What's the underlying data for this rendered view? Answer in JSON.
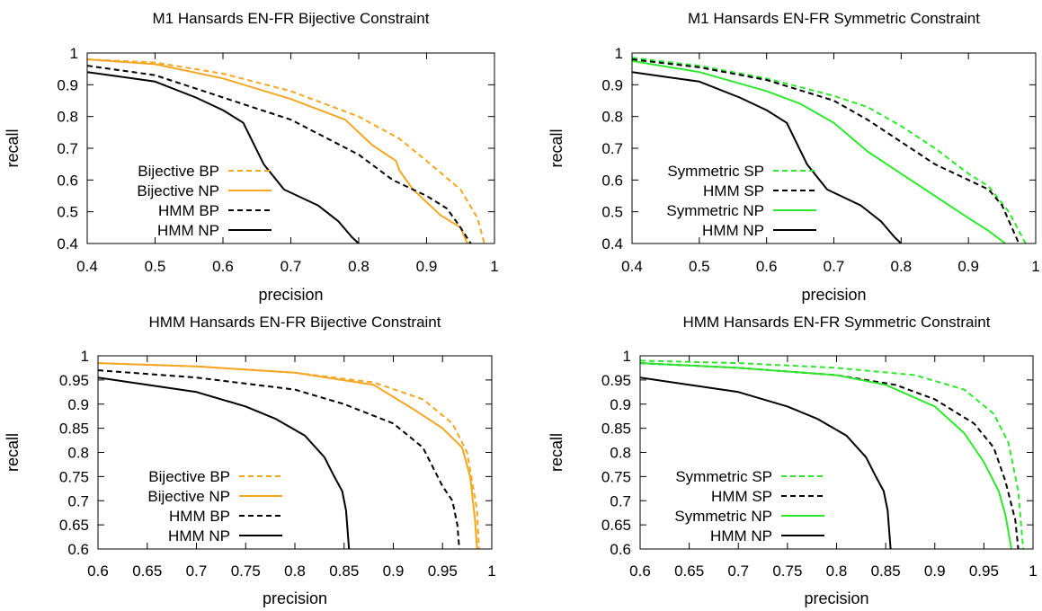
{
  "chart_data": [
    {
      "type": "line",
      "title": "M1 Hansards EN-FR Bijective Constraint",
      "xlabel": "precision",
      "ylabel": "recall",
      "xlim": [
        0.4,
        1
      ],
      "ylim": [
        0.4,
        1
      ],
      "xticks": [
        "0.4",
        "0.5",
        "0.6",
        "0.7",
        "0.8",
        "0.9",
        "1"
      ],
      "yticks": [
        "0.4",
        "0.5",
        "0.6",
        "0.7",
        "0.8",
        "0.9",
        "1"
      ],
      "legend_position": "lower-left",
      "series": [
        {
          "name": "Bijective BP",
          "color": "#f5a623",
          "dash": "dashed",
          "x": [
            0.4,
            0.5,
            0.6,
            0.7,
            0.8,
            0.86,
            0.9,
            0.95,
            0.975,
            0.985
          ],
          "y": [
            0.98,
            0.97,
            0.935,
            0.88,
            0.8,
            0.73,
            0.66,
            0.57,
            0.48,
            0.4
          ]
        },
        {
          "name": "Bijective NP",
          "color": "#f5a623",
          "dash": "solid",
          "x": [
            0.4,
            0.5,
            0.6,
            0.7,
            0.78,
            0.82,
            0.855,
            0.86,
            0.88,
            0.92,
            0.95,
            0.96
          ],
          "y": [
            0.98,
            0.965,
            0.92,
            0.855,
            0.79,
            0.71,
            0.66,
            0.63,
            0.57,
            0.49,
            0.45,
            0.4
          ]
        },
        {
          "name": "HMM BP",
          "color": "#000000",
          "dash": "dashed",
          "x": [
            0.4,
            0.5,
            0.6,
            0.7,
            0.8,
            0.85,
            0.9,
            0.93,
            0.95,
            0.965
          ],
          "y": [
            0.96,
            0.93,
            0.86,
            0.79,
            0.68,
            0.6,
            0.55,
            0.51,
            0.45,
            0.4
          ]
        },
        {
          "name": "HMM NP",
          "color": "#000000",
          "dash": "solid",
          "x": [
            0.4,
            0.5,
            0.56,
            0.6,
            0.63,
            0.66,
            0.69,
            0.74,
            0.77,
            0.79,
            0.8
          ],
          "y": [
            0.94,
            0.91,
            0.86,
            0.82,
            0.78,
            0.65,
            0.57,
            0.52,
            0.47,
            0.42,
            0.4
          ]
        }
      ]
    },
    {
      "type": "line",
      "title": "M1 Hansards EN-FR Symmetric Constraint",
      "xlabel": "precision",
      "ylabel": "recall",
      "xlim": [
        0.4,
        1
      ],
      "ylim": [
        0.4,
        1
      ],
      "xticks": [
        "0.4",
        "0.5",
        "0.6",
        "0.7",
        "0.8",
        "0.9",
        "1"
      ],
      "yticks": [
        "0.4",
        "0.5",
        "0.6",
        "0.7",
        "0.8",
        "0.9",
        "1"
      ],
      "legend_position": "lower-left",
      "series": [
        {
          "name": "Symmetric SP",
          "color": "#2ee82e",
          "dash": "dashed",
          "x": [
            0.4,
            0.5,
            0.6,
            0.7,
            0.75,
            0.8,
            0.85,
            0.9,
            0.93,
            0.96,
            0.985
          ],
          "y": [
            0.985,
            0.96,
            0.92,
            0.865,
            0.83,
            0.77,
            0.7,
            0.62,
            0.58,
            0.5,
            0.4
          ]
        },
        {
          "name": "HMM SP",
          "color": "#000000",
          "dash": "dashed",
          "x": [
            0.4,
            0.5,
            0.6,
            0.7,
            0.75,
            0.8,
            0.85,
            0.9,
            0.93,
            0.95,
            0.975
          ],
          "y": [
            0.98,
            0.955,
            0.915,
            0.85,
            0.79,
            0.72,
            0.65,
            0.6,
            0.57,
            0.52,
            0.4
          ]
        },
        {
          "name": "Symmetric NP",
          "color": "#2ee82e",
          "dash": "solid",
          "x": [
            0.4,
            0.5,
            0.6,
            0.65,
            0.7,
            0.75,
            0.8,
            0.85,
            0.9,
            0.93,
            0.955
          ],
          "y": [
            0.975,
            0.94,
            0.88,
            0.84,
            0.78,
            0.69,
            0.62,
            0.55,
            0.48,
            0.44,
            0.4
          ]
        },
        {
          "name": "HMM NP",
          "color": "#000000",
          "dash": "solid",
          "x": [
            0.4,
            0.5,
            0.56,
            0.6,
            0.63,
            0.66,
            0.69,
            0.74,
            0.77,
            0.79,
            0.8
          ],
          "y": [
            0.94,
            0.91,
            0.86,
            0.82,
            0.78,
            0.65,
            0.57,
            0.52,
            0.47,
            0.42,
            0.4
          ]
        }
      ]
    },
    {
      "type": "line",
      "title": "HMM Hansards EN-FR Bijective Constraint",
      "xlabel": "precision",
      "ylabel": "recall",
      "xlim": [
        0.6,
        1
      ],
      "ylim": [
        0.6,
        1
      ],
      "xticks": [
        "0.6",
        "0.65",
        "0.7",
        "0.75",
        "0.8",
        "0.85",
        "0.9",
        "0.95",
        "1"
      ],
      "yticks": [
        "0.6",
        "0.65",
        "0.7",
        "0.75",
        "0.8",
        "0.85",
        "0.9",
        "0.95",
        "1"
      ],
      "legend_position": "lower-left",
      "series": [
        {
          "name": "Bijective BP",
          "color": "#f5a623",
          "dash": "dashed",
          "x": [
            0.6,
            0.7,
            0.8,
            0.88,
            0.93,
            0.96,
            0.975,
            0.985,
            0.987
          ],
          "y": [
            0.985,
            0.978,
            0.965,
            0.945,
            0.91,
            0.86,
            0.8,
            0.68,
            0.6
          ]
        },
        {
          "name": "Bijective NP",
          "color": "#f5a623",
          "dash": "solid",
          "x": [
            0.6,
            0.7,
            0.8,
            0.88,
            0.92,
            0.95,
            0.97,
            0.978,
            0.983,
            0.985
          ],
          "y": [
            0.985,
            0.978,
            0.965,
            0.94,
            0.89,
            0.85,
            0.81,
            0.75,
            0.66,
            0.6
          ]
        },
        {
          "name": "HMM BP",
          "color": "#000000",
          "dash": "dashed",
          "x": [
            0.6,
            0.7,
            0.8,
            0.85,
            0.9,
            0.93,
            0.95,
            0.96,
            0.965,
            0.967
          ],
          "y": [
            0.97,
            0.955,
            0.93,
            0.9,
            0.86,
            0.81,
            0.73,
            0.7,
            0.65,
            0.6
          ]
        },
        {
          "name": "HMM NP",
          "color": "#000000",
          "dash": "solid",
          "x": [
            0.6,
            0.65,
            0.7,
            0.75,
            0.78,
            0.81,
            0.83,
            0.84,
            0.848,
            0.852,
            0.855
          ],
          "y": [
            0.955,
            0.94,
            0.925,
            0.895,
            0.87,
            0.835,
            0.79,
            0.75,
            0.72,
            0.68,
            0.6
          ]
        }
      ]
    },
    {
      "type": "line",
      "title": "HMM Hansards EN-FR Symmetric Constraint",
      "xlabel": "precision",
      "ylabel": "recall",
      "xlim": [
        0.6,
        1
      ],
      "ylim": [
        0.6,
        1
      ],
      "xticks": [
        "0.6",
        "0.65",
        "0.7",
        "0.75",
        "0.8",
        "0.85",
        "0.9",
        "0.95",
        "1"
      ],
      "yticks": [
        "0.6",
        "0.65",
        "0.7",
        "0.75",
        "0.8",
        "0.85",
        "0.9",
        "0.95",
        "1"
      ],
      "legend_position": "lower-left",
      "series": [
        {
          "name": "Symmetric SP",
          "color": "#2ee82e",
          "dash": "dashed",
          "x": [
            0.6,
            0.7,
            0.8,
            0.88,
            0.93,
            0.96,
            0.975,
            0.985,
            0.99
          ],
          "y": [
            0.99,
            0.985,
            0.975,
            0.96,
            0.93,
            0.88,
            0.82,
            0.72,
            0.6
          ]
        },
        {
          "name": "HMM SP",
          "color": "#000000",
          "dash": "dashed",
          "x": [
            0.6,
            0.7,
            0.8,
            0.86,
            0.9,
            0.94,
            0.96,
            0.972,
            0.982,
            0.985
          ],
          "y": [
            0.985,
            0.975,
            0.96,
            0.94,
            0.91,
            0.86,
            0.81,
            0.74,
            0.66,
            0.6
          ]
        },
        {
          "name": "Symmetric NP",
          "color": "#2ee82e",
          "dash": "solid",
          "x": [
            0.6,
            0.7,
            0.8,
            0.85,
            0.9,
            0.93,
            0.95,
            0.965,
            0.972,
            0.978
          ],
          "y": [
            0.985,
            0.975,
            0.96,
            0.94,
            0.895,
            0.84,
            0.78,
            0.72,
            0.67,
            0.6
          ]
        },
        {
          "name": "HMM NP",
          "color": "#000000",
          "dash": "solid",
          "x": [
            0.6,
            0.65,
            0.7,
            0.75,
            0.78,
            0.81,
            0.83,
            0.84,
            0.848,
            0.852,
            0.855
          ],
          "y": [
            0.955,
            0.94,
            0.925,
            0.895,
            0.87,
            0.835,
            0.79,
            0.75,
            0.72,
            0.68,
            0.6
          ]
        }
      ]
    }
  ]
}
